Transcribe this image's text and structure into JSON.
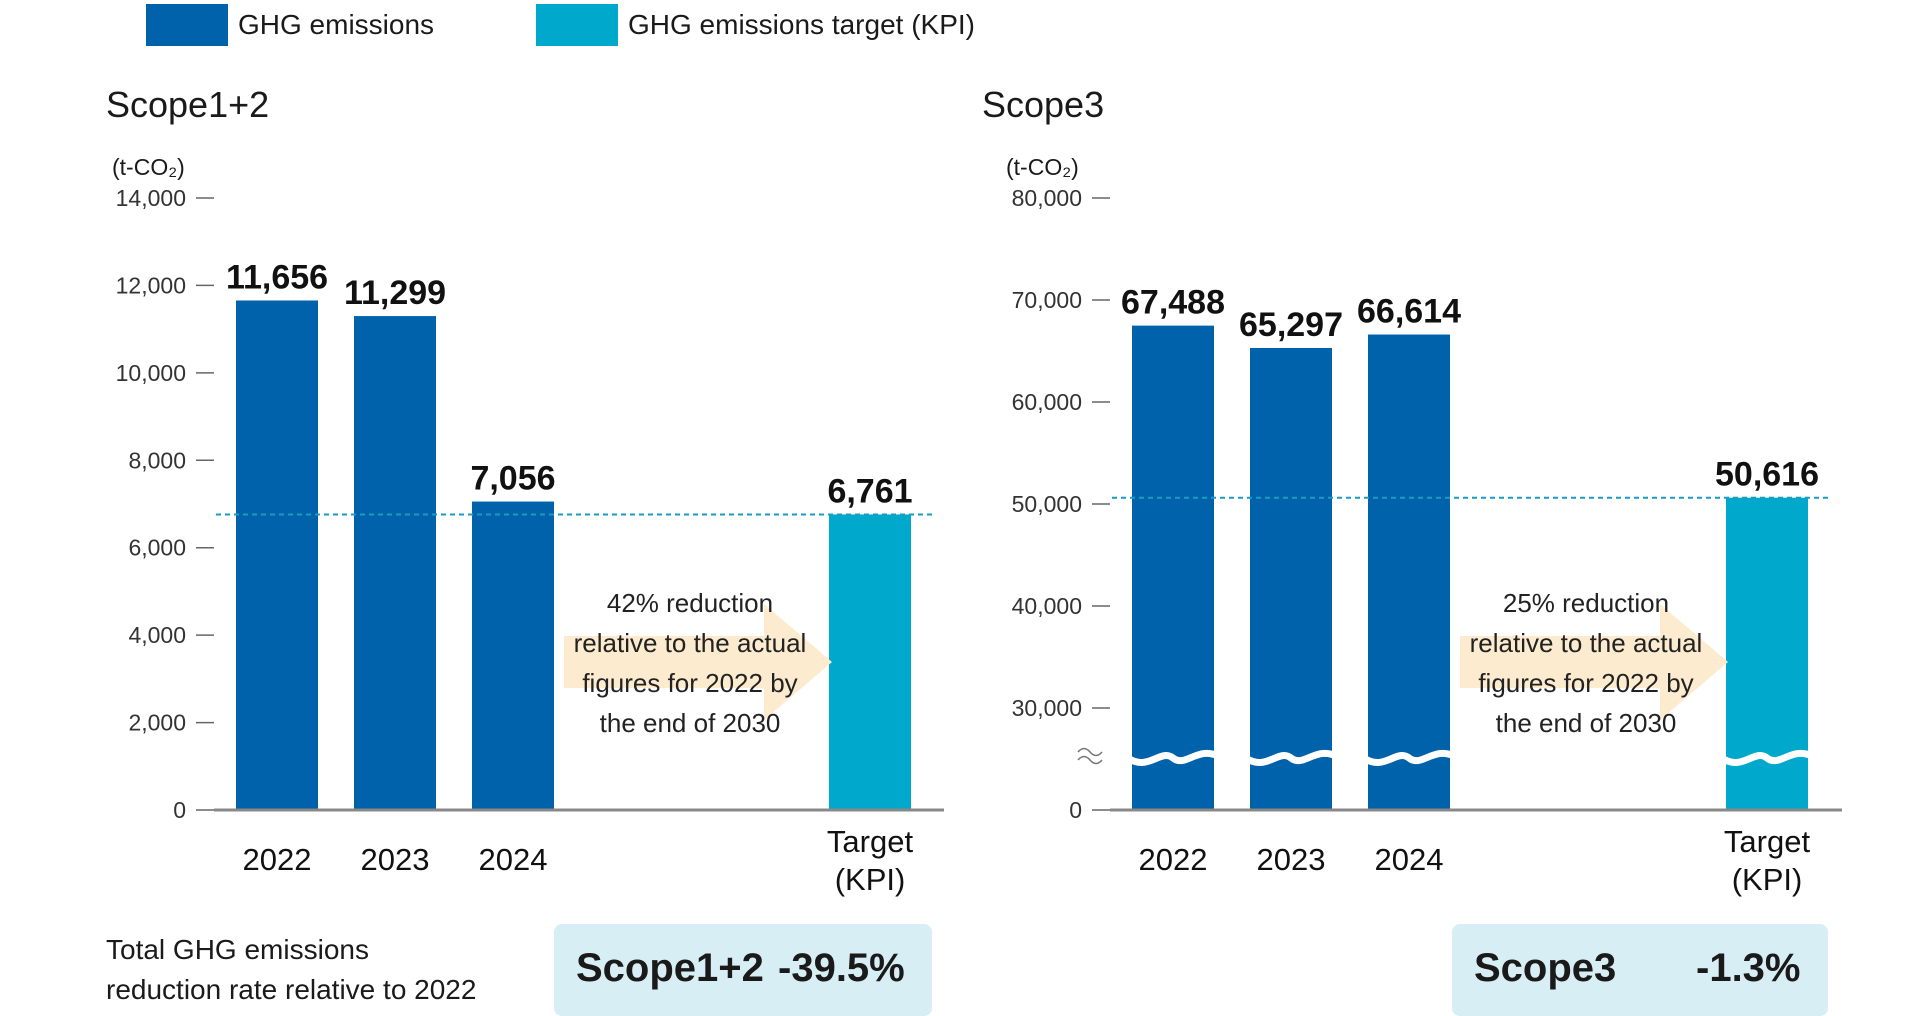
{
  "legend": {
    "actual_label": "GHG emissions",
    "target_label": "GHG emissions target (KPI)"
  },
  "colors": {
    "actual": "#0062AA",
    "target": "#00A9CC",
    "arrow": "#FCEBCF",
    "summary_bg": "#D8EEF5"
  },
  "unit_label": "(t-CO₂)",
  "chart_data": [
    {
      "type": "bar",
      "title": "Scope1+2",
      "ylabel": "(t-CO₂)",
      "ylim": [
        0,
        14000
      ],
      "yticks": [
        0,
        2000,
        4000,
        6000,
        8000,
        10000,
        12000,
        14000
      ],
      "tick_labels": [
        "0",
        "2,000",
        "4,000",
        "6,000",
        "8,000",
        "10,000",
        "12,000",
        "14,000"
      ],
      "axis_break": false,
      "categories": [
        "2022",
        "2023",
        "2024",
        "Target (KPI)"
      ],
      "series": [
        {
          "name": "GHG emissions",
          "values": [
            11656,
            11299,
            7056,
            null
          ]
        },
        {
          "name": "GHG emissions target (KPI)",
          "values": [
            null,
            null,
            null,
            6761
          ]
        }
      ],
      "data_labels": [
        "11,656",
        "11,299",
        "7,056",
        "6,761"
      ],
      "target_line": 6761,
      "annotation": [
        "42% reduction",
        "relative to the actual",
        "figures for 2022 by",
        "the end of 2030"
      ]
    },
    {
      "type": "bar",
      "title": "Scope3",
      "ylabel": "(t-CO₂)",
      "ylim": [
        0,
        80000
      ],
      "yticks": [
        0,
        30000,
        40000,
        50000,
        60000,
        70000,
        80000
      ],
      "tick_labels": [
        "0",
        "30,000",
        "40,000",
        "50,000",
        "60,000",
        "70,000",
        "80,000"
      ],
      "axis_break": true,
      "categories": [
        "2022",
        "2023",
        "2024",
        "Target (KPI)"
      ],
      "series": [
        {
          "name": "GHG emissions",
          "values": [
            67488,
            65297,
            66614,
            null
          ]
        },
        {
          "name": "GHG emissions target (KPI)",
          "values": [
            null,
            null,
            null,
            50616
          ]
        }
      ],
      "data_labels": [
        "67,488",
        "65,297",
        "66,614",
        "50,616"
      ],
      "target_line": 50616,
      "annotation": [
        "25% reduction",
        "relative to the actual",
        "figures for 2022 by",
        "the end of 2030"
      ]
    }
  ],
  "category_labels": {
    "years": [
      "2022",
      "2023",
      "2024"
    ],
    "target_line1": "Target",
    "target_line2": "(KPI)"
  },
  "summary": {
    "line1": "Total GHG emissions",
    "line2": "reduction rate relative to 2022",
    "scope12_label": "Scope1+2",
    "scope12_value": "-39.5%",
    "scope3_label": "Scope3",
    "scope3_value": "-1.3%"
  }
}
